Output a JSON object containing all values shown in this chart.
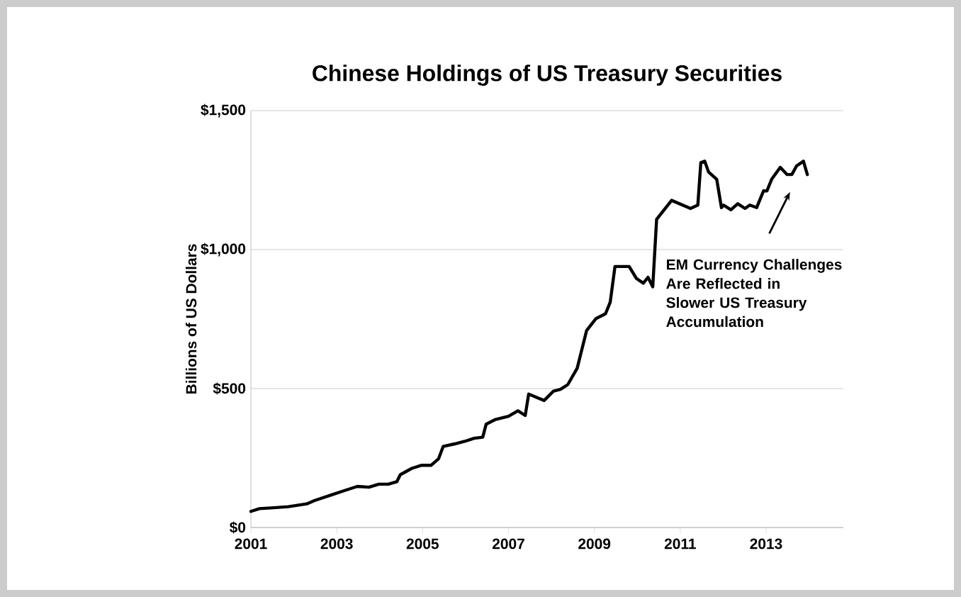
{
  "chart_data": {
    "type": "line",
    "title": "Chinese Holdings of US Treasury Securities",
    "ylabel": "Billions of US Dollars",
    "annotations": [
      "EM Currency Challenges Are Reflected in Slower US Treasury Accumulation"
    ],
    "x": [
      2001.0,
      2001.2,
      2001.53,
      2001.87,
      2002.3,
      2002.48,
      2002.87,
      2003.2,
      2003.48,
      2003.75,
      2003.98,
      2004.2,
      2004.4,
      2004.48,
      2004.75,
      2004.98,
      2005.2,
      2005.37,
      2005.48,
      2005.75,
      2005.98,
      2006.2,
      2006.4,
      2006.48,
      2006.7,
      2007.0,
      2007.22,
      2007.39,
      2007.47,
      2007.83,
      2008.05,
      2008.21,
      2008.38,
      2008.6,
      2008.82,
      2009.04,
      2009.26,
      2009.37,
      2009.48,
      2009.81,
      2009.98,
      2010.14,
      2010.25,
      2010.36,
      2010.45,
      2010.58,
      2010.8,
      2011.24,
      2011.41,
      2011.48,
      2011.57,
      2011.66,
      2011.85,
      2011.96,
      2012.01,
      2012.18,
      2012.34,
      2012.51,
      2012.62,
      2012.78,
      2012.94,
      2013.02,
      2013.13,
      2013.33,
      2013.49,
      2013.6,
      2013.71,
      2013.87,
      2013.96
    ],
    "series": [
      {
        "color": "#000000",
        "values": [
          58,
          68,
          71,
          75,
          85,
          97,
          117,
          134,
          148,
          145,
          156,
          156,
          165,
          190,
          213,
          224,
          224,
          247,
          292,
          301,
          310,
          321,
          325,
          372,
          389,
          400,
          420,
          403,
          480,
          457,
          491,
          497,
          514,
          573,
          709,
          752,
          769,
          811,
          939,
          939,
          896,
          879,
          900,
          866,
          1109,
          1134,
          1177,
          1148,
          1160,
          1313,
          1318,
          1279,
          1253,
          1151,
          1160,
          1143,
          1165,
          1148,
          1160,
          1151,
          1211,
          1211,
          1253,
          1296,
          1270,
          1270,
          1301,
          1318,
          1270
        ]
      }
    ],
    "xlim": [
      2001,
      2014.8
    ],
    "xticks": [
      2001,
      2003,
      2005,
      2007,
      2009,
      2011,
      2013
    ],
    "ylim": [
      0,
      1500
    ],
    "yticks": [
      {
        "value": 0,
        "label": "$0"
      },
      {
        "value": 500,
        "label": "$500"
      },
      {
        "value": 1000,
        "label": "$1,000"
      },
      {
        "value": 1500,
        "label": "$1,500"
      }
    ],
    "grid": "y",
    "marker": "none",
    "line_style": "solid"
  }
}
